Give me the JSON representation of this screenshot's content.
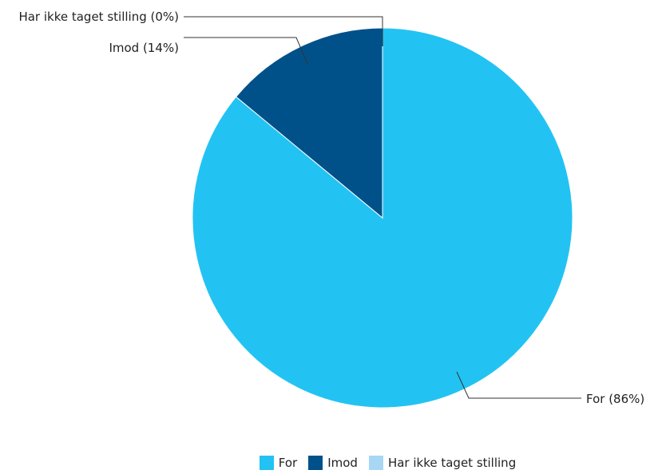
{
  "chart_data": {
    "type": "pie",
    "slices": [
      {
        "name": "For",
        "value": 86,
        "color": "#22c3f3",
        "label": "For (86%)"
      },
      {
        "name": "Imod",
        "value": 14,
        "color": "#005189",
        "label": "Imod (14%)"
      },
      {
        "name": "Har ikke taget stilling",
        "value": 0,
        "color": "#a8d6f5",
        "label": "Har ikke taget stilling (0%)"
      }
    ],
    "legend": {
      "position": "bottom-center",
      "entries": [
        "For",
        "Imod",
        "Har ikke taget stilling"
      ]
    }
  }
}
